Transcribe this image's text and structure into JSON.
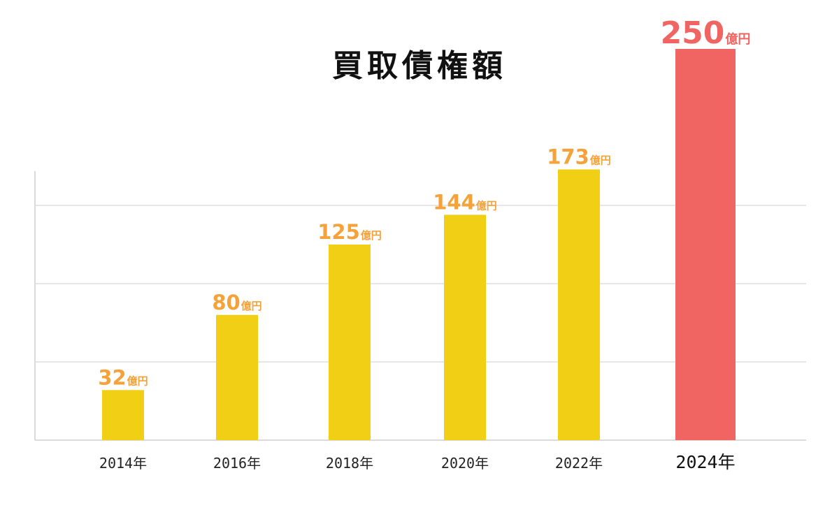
{
  "chart_data": {
    "type": "bar",
    "title": "買取債権額",
    "categories": [
      "2014年",
      "2016年",
      "2018年",
      "2020年",
      "2022年",
      "2024年"
    ],
    "values": [
      32,
      80,
      125,
      144,
      173,
      250
    ],
    "value_labels": [
      "32",
      "80",
      "125",
      "144",
      "173",
      "250"
    ],
    "value_unit": "億円",
    "ylim": [
      0,
      200
    ],
    "y_gridlines": [
      50,
      100,
      150
    ],
    "grid": true,
    "highlight_index": 5,
    "colors": {
      "bar": "#f0cf14",
      "bar_highlight": "#f06462",
      "label": "#f5a23a",
      "label_highlight": "#f06462"
    }
  }
}
